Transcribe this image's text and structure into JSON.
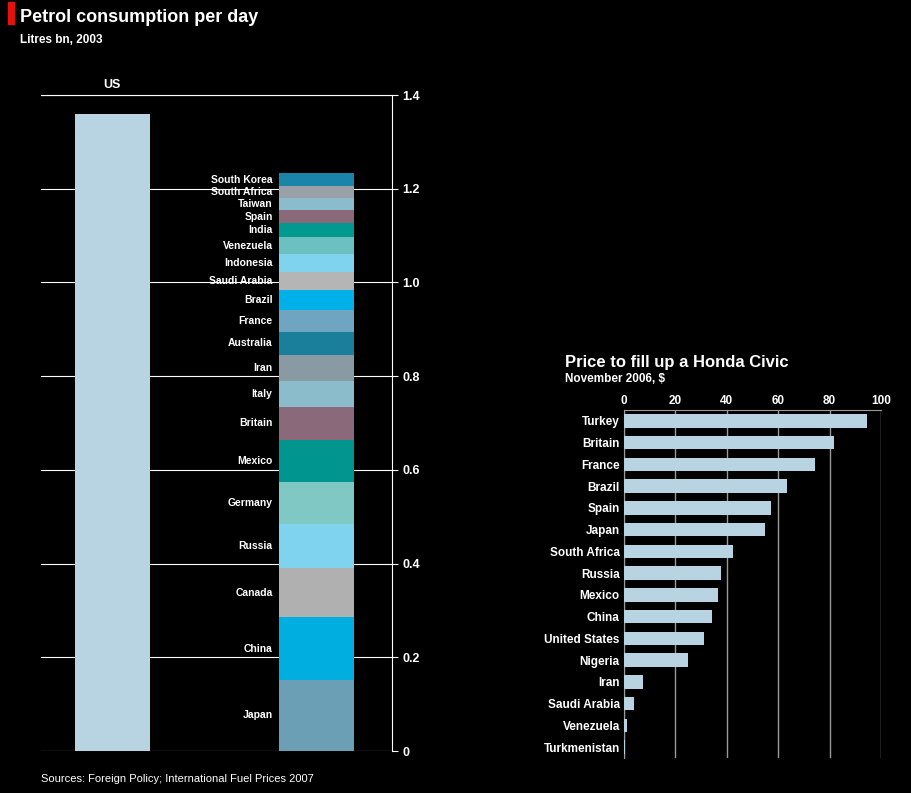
{
  "chart_data": [
    {
      "type": "bar",
      "stacked": true,
      "title": "Petrol consumption per day",
      "subtitle": "Litres bn, 2003",
      "categories": [
        "US",
        null
      ],
      "series": [
        {
          "name": "US",
          "color": "#b8d4e3",
          "values": [
            1.36,
            null
          ]
        },
        {
          "name": "Japan",
          "color": "#6a9fb5",
          "values": [
            null,
            0.152
          ]
        },
        {
          "name": "China",
          "color": "#00aee0",
          "values": [
            null,
            0.133
          ]
        },
        {
          "name": "Canada",
          "color": "#b0b0b0",
          "values": [
            null,
            0.106
          ]
        },
        {
          "name": "Russia",
          "color": "#7fd3ef",
          "values": [
            null,
            0.093
          ]
        },
        {
          "name": "Germany",
          "color": "#7fc8c4",
          "values": [
            null,
            0.091
          ]
        },
        {
          "name": "Mexico",
          "color": "#00968f",
          "values": [
            null,
            0.089
          ]
        },
        {
          "name": "Britain",
          "color": "#8a6a7a",
          "values": [
            null,
            0.071
          ]
        },
        {
          "name": "Italy",
          "color": "#8bbccc",
          "values": [
            null,
            0.054
          ]
        },
        {
          "name": "Iran",
          "color": "#8a9aa2",
          "values": [
            null,
            0.056
          ]
        },
        {
          "name": "Australia",
          "color": "#1a7f9a",
          "values": [
            null,
            0.05
          ]
        },
        {
          "name": "France",
          "color": "#6fa5c0",
          "values": [
            null,
            0.046
          ]
        },
        {
          "name": "Brazil",
          "color": "#00b0e8",
          "values": [
            null,
            0.042
          ]
        },
        {
          "name": "Saudi Arabia",
          "color": "#b5b5b5",
          "values": [
            null,
            0.039
          ]
        },
        {
          "name": "Indonesia",
          "color": "#7fd3ef",
          "values": [
            null,
            0.039
          ]
        },
        {
          "name": "Venezuela",
          "color": "#6cc0c0",
          "values": [
            null,
            0.035
          ]
        },
        {
          "name": "India",
          "color": "#009a90",
          "values": [
            null,
            0.031
          ]
        },
        {
          "name": "Spain",
          "color": "#8a6a7a",
          "values": [
            null,
            0.027
          ]
        },
        {
          "name": "Taiwan",
          "color": "#8bbccc",
          "values": [
            null,
            0.027
          ]
        },
        {
          "name": "South Africa",
          "color": "#9aa0a8",
          "values": [
            null,
            0.025
          ]
        },
        {
          "name": "South Korea",
          "color": "#1a85a8",
          "values": [
            null,
            0.027
          ]
        }
      ],
      "ylim": [
        0,
        1.4
      ],
      "yticks": [
        0,
        0.2,
        0.4,
        0.6,
        0.8,
        {
          "value": 1,
          "label": "1.0"
        },
        1.2,
        1.4
      ],
      "grid": true
    },
    {
      "type": "bar",
      "orientation": "horizontal",
      "title": "Price to fill up a Honda Civic",
      "subtitle": "November 2006, $",
      "categories": [
        "Turkey",
        "Britain",
        "France",
        "Brazil",
        "Spain",
        "Japan",
        "South Africa",
        "Russia",
        "Mexico",
        "China",
        "United States",
        "Nigeria",
        "Iran",
        "Saudi Arabia",
        "Venezuela",
        "Turkmenistan"
      ],
      "values": [
        94.5,
        81.7,
        74.3,
        63.4,
        57.2,
        54.9,
        42.4,
        37.7,
        36.6,
        34.2,
        31.1,
        24.9,
        7.4,
        3.9,
        1.2,
        0.4
      ],
      "color": "#b8d4e3",
      "xlim": [
        0,
        100
      ],
      "xticks": [
        0,
        20,
        40,
        60,
        80,
        100
      ],
      "grid": true
    }
  ],
  "source": "Sources: Foreign Policy; International Fuel Prices 2007"
}
